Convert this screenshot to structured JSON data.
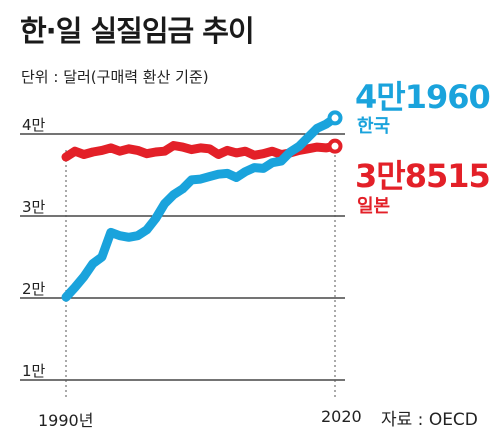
{
  "title": "한·일 실질임금 추이",
  "unit": "단위 : 달러(구매력 환산 기준)",
  "source": "자료 : OECD",
  "colors": {
    "korea": "#1aa3dc",
    "japan": "#e32028",
    "grid": "#222222"
  },
  "chart_data": {
    "type": "line",
    "title": "한·일 실질임금 추이",
    "ylabel": "단위 : 달러(구매력 환산 기준)",
    "ylim": [
      10000,
      42000
    ],
    "yticks": [
      {
        "value": 40000,
        "label": "4만"
      },
      {
        "value": 30000,
        "label": "3만"
      },
      {
        "value": 20000,
        "label": "2만"
      },
      {
        "value": 10000,
        "label": "1만"
      }
    ],
    "x_labels": [
      {
        "value": 1990,
        "label": "1990년"
      },
      {
        "value": 2020,
        "label": "2020"
      }
    ],
    "grid": true,
    "series": [
      {
        "name": "한국",
        "end_label": "4만1960",
        "color": "#1aa3dc",
        "x": [
          1990,
          1991,
          1992,
          1993,
          1994,
          1995,
          1996,
          1997,
          1998,
          1999,
          2000,
          2001,
          2002,
          2003,
          2004,
          2005,
          2006,
          2007,
          2008,
          2009,
          2010,
          2011,
          2012,
          2013,
          2014,
          2015,
          2016,
          2017,
          2018,
          2019,
          2020
        ],
        "values": [
          20100,
          21300,
          22600,
          24200,
          25000,
          28000,
          27600,
          27400,
          27600,
          28300,
          29700,
          31500,
          32600,
          33300,
          34400,
          34500,
          34800,
          35100,
          35200,
          34700,
          35400,
          35900,
          35800,
          36500,
          36700,
          37800,
          38500,
          39600,
          40700,
          41200,
          41960
        ]
      },
      {
        "name": "일본",
        "end_label": "3만8515",
        "color": "#e32028",
        "x": [
          1990,
          1991,
          1992,
          1993,
          1994,
          1995,
          1996,
          1997,
          1998,
          1999,
          2000,
          2001,
          2002,
          2003,
          2004,
          2005,
          2006,
          2007,
          2008,
          2009,
          2010,
          2011,
          2012,
          2013,
          2014,
          2015,
          2016,
          2017,
          2018,
          2019,
          2020
        ],
        "values": [
          37200,
          37900,
          37500,
          37800,
          38000,
          38300,
          37900,
          38200,
          38000,
          37600,
          37800,
          37900,
          38600,
          38400,
          38100,
          38300,
          38200,
          37500,
          38000,
          37700,
          37900,
          37400,
          37600,
          37900,
          37500,
          37700,
          38000,
          38200,
          38400,
          38300,
          38515
        ]
      }
    ]
  }
}
